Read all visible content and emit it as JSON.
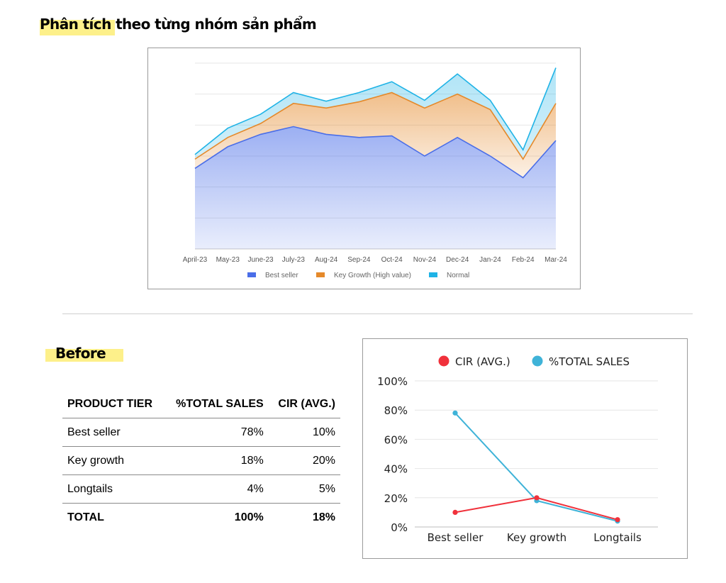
{
  "header": {
    "title": "Phân tích theo từng nhóm sản phẩm"
  },
  "before_section": {
    "title": "Before"
  },
  "table": {
    "headers": [
      "PRODUCT TIER",
      "%TOTAL SALES",
      "CIR (AVG.)"
    ],
    "rows": [
      [
        "Best seller",
        "78%",
        "10%"
      ],
      [
        "Key growth",
        "18%",
        "20%"
      ],
      [
        "Longtails",
        "4%",
        "5%"
      ],
      [
        "TOTAL",
        "100%",
        "18%"
      ]
    ]
  },
  "chart_data": [
    {
      "type": "area",
      "stacked": true,
      "categories": [
        "April-23",
        "May-23",
        "June-23",
        "July-23",
        "Aug-24",
        "Sep-24",
        "Oct-24",
        "Nov-24",
        "Dec-24",
        "Jan-24",
        "Feb-24",
        "Mar-24"
      ],
      "series": [
        {
          "name": "Best seller",
          "color": "#4a6ee8",
          "values": [
            2.6,
            3.3,
            3.7,
            3.95,
            3.7,
            3.6,
            3.65,
            3.0,
            3.6,
            3.0,
            2.3,
            3.5
          ]
        },
        {
          "name": "Key Growth (High value)",
          "color": "#e5892a",
          "values": [
            0.3,
            0.3,
            0.35,
            0.75,
            0.85,
            1.15,
            1.4,
            1.55,
            1.4,
            1.5,
            0.6,
            1.2
          ]
        },
        {
          "name": "Normal",
          "color": "#1fb3e6",
          "values": [
            0.15,
            0.3,
            0.3,
            0.35,
            0.22,
            0.3,
            0.35,
            0.25,
            0.65,
            0.3,
            0.3,
            1.15
          ]
        }
      ],
      "ylim": [
        0,
        6
      ],
      "yticks": [
        0,
        1,
        2,
        3,
        4,
        5,
        6
      ],
      "grid": true,
      "legend": "bottom"
    },
    {
      "type": "line",
      "categories": [
        "Best seller",
        "Key growth",
        "Longtails"
      ],
      "series": [
        {
          "name": "CIR (AVG.)",
          "color": "#f0313b",
          "values": [
            10,
            20,
            5
          ]
        },
        {
          "name": "%TOTAL SALES",
          "color": "#3fb3d8",
          "values": [
            78,
            18,
            4
          ]
        }
      ],
      "ylim": [
        0,
        100
      ],
      "ytick_labels": [
        "0%",
        "20%",
        "40%",
        "60%",
        "80%",
        "100%"
      ],
      "grid": true,
      "legend": "top"
    }
  ]
}
